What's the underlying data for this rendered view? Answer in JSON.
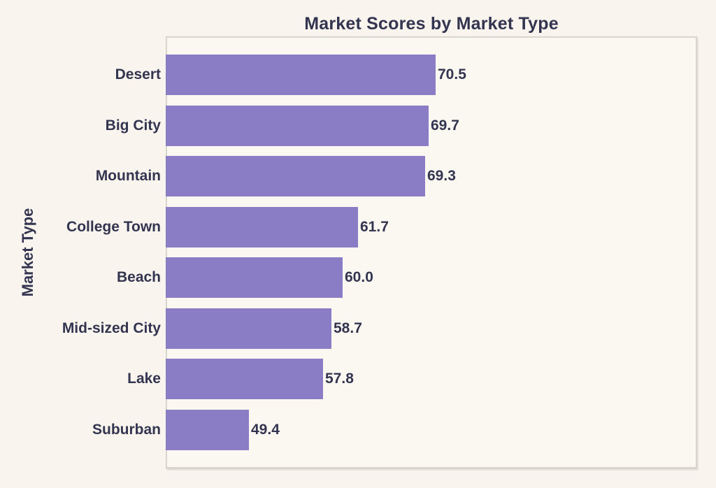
{
  "chart_data": {
    "type": "bar",
    "orientation": "horizontal",
    "title": "Market Scores by Market Type",
    "xlabel": "",
    "ylabel": "Market Type",
    "categories": [
      "Desert",
      "Big City",
      "Mountain",
      "College Town",
      "Beach",
      "Mid-sized City",
      "Lake",
      "Suburban"
    ],
    "values": [
      70.5,
      69.7,
      69.3,
      61.7,
      60.0,
      58.7,
      57.8,
      49.4
    ],
    "value_labels": [
      "70.5",
      "69.7",
      "69.3",
      "61.7",
      "60.0",
      "58.7",
      "57.8",
      "49.4"
    ],
    "xlim": [
      40,
      100
    ],
    "grid": false,
    "legend": "none",
    "x_tick_labels_visible": false,
    "bar_color": "#8b7dc5",
    "text_color": "#333450",
    "background_color": "#f9f5ee",
    "plot_background_color": "#fbf8f1",
    "frame_border_color": "#d9d6ce"
  }
}
